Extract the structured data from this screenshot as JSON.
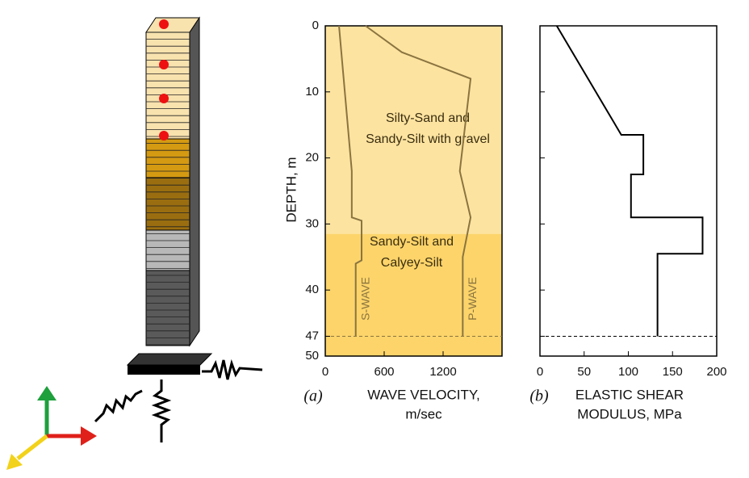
{
  "chart_data": [
    {
      "type": "line",
      "label": "(a)",
      "xlabel": [
        "WAVE VELOCITY,",
        "m/sec"
      ],
      "ylabel": "DEPTH, m",
      "xlim": [
        0,
        1800
      ],
      "ylim": [
        0,
        50
      ],
      "xticks": [
        0,
        600,
        1200
      ],
      "yticks": [
        0,
        10,
        20,
        30,
        40,
        47,
        50
      ],
      "y_inverted": true,
      "hline": 47,
      "layers": [
        {
          "name": [
            "Silty-Sand and",
            "Sandy-Silt with gravel"
          ],
          "top": 0,
          "bottom": 31.5,
          "color": "#fde3a0"
        },
        {
          "name": [
            "Sandy-Silt and",
            "Calyey-Silt"
          ],
          "top": 31.5,
          "bottom": 50,
          "color": "#fcd46a"
        }
      ],
      "series": [
        {
          "name": "S-WAVE",
          "color": "#8a7440",
          "x": [
            140,
            270,
            270,
            370,
            370,
            310,
            310
          ],
          "values": [
            0,
            22,
            29,
            29.5,
            35.5,
            36,
            47
          ]
        },
        {
          "name": "P-WAVE",
          "color": "#8a7440",
          "x": [
            410,
            780,
            1480,
            1370,
            1480,
            1400,
            1400
          ],
          "values": [
            0,
            4,
            8,
            22,
            29,
            35,
            47
          ]
        }
      ]
    },
    {
      "type": "line",
      "label": "(b)",
      "xlabel": [
        "ELASTIC SHEAR",
        "MODULUS, MPa"
      ],
      "xlim": [
        0,
        200
      ],
      "ylim": [
        0,
        50
      ],
      "xticks": [
        0,
        50,
        100,
        150,
        200
      ],
      "yticks": [
        0,
        10,
        20,
        30,
        40,
        47,
        50
      ],
      "show_ytick_labels": false,
      "y_inverted": true,
      "hline": 47,
      "series": [
        {
          "color": "#000000",
          "x": [
            19,
            92,
            117,
            117,
            103,
            103,
            184,
            184,
            133,
            133
          ],
          "values": [
            0,
            16.5,
            16.5,
            22.5,
            22.5,
            29,
            29,
            34.5,
            34.5,
            47
          ]
        }
      ]
    }
  ]
}
